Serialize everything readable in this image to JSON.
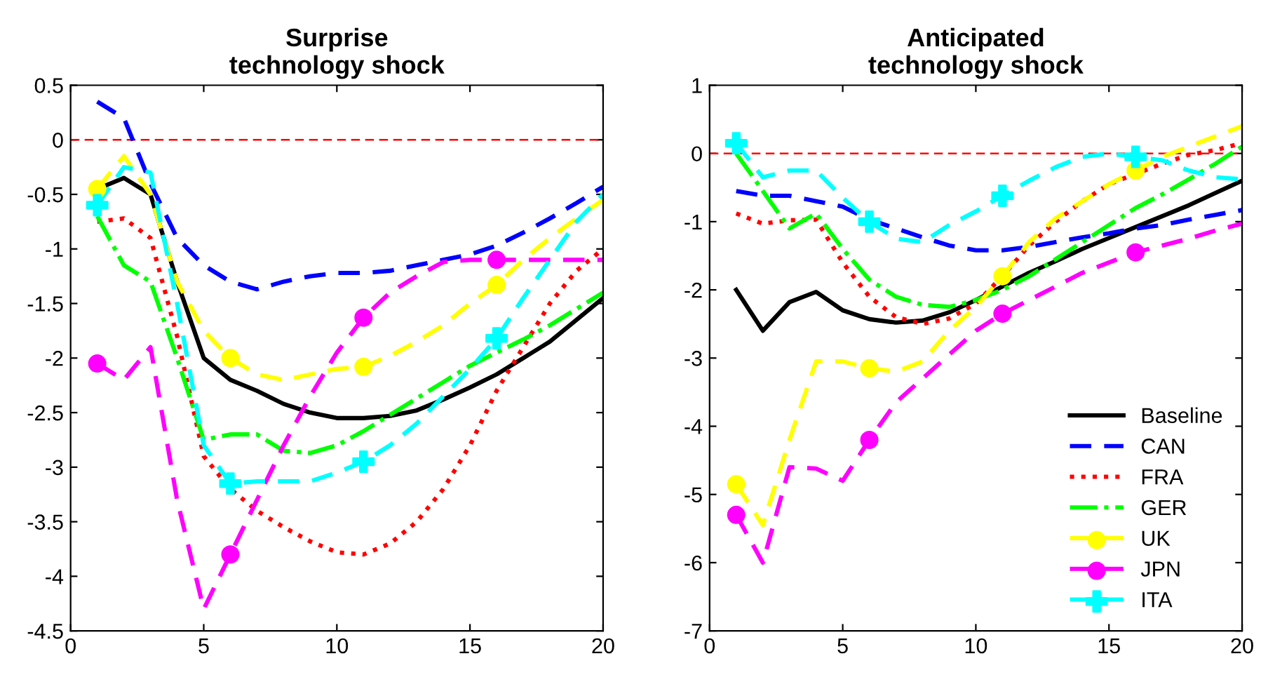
{
  "chart_data": [
    {
      "type": "line",
      "title": "Surprise\ntechnology shock",
      "x": [
        1,
        2,
        3,
        4,
        5,
        6,
        7,
        8,
        9,
        10,
        11,
        12,
        13,
        14,
        15,
        16,
        17,
        18,
        19,
        20
      ],
      "xlim": [
        0,
        20
      ],
      "xticks": [
        0,
        5,
        10,
        15,
        20
      ],
      "ylim": [
        -4.5,
        0.5
      ],
      "yticks": [
        -4.5,
        -4,
        -3.5,
        -3,
        -2.5,
        -2,
        -1.5,
        -1,
        -0.5,
        0,
        0.5
      ],
      "grid": false,
      "legend": false,
      "ref_lines": [
        {
          "axis": "y",
          "value": 0,
          "color": "#ff0000",
          "line_style": "dashed"
        }
      ],
      "series": [
        {
          "color": "#000000",
          "line_style": "solid",
          "marker": "none",
          "values": [
            -0.45,
            -0.35,
            -0.5,
            -1.3,
            -2.0,
            -2.2,
            -2.3,
            -2.42,
            -2.5,
            -2.55,
            -2.55,
            -2.53,
            -2.48,
            -2.38,
            -2.27,
            -2.15,
            -2.0,
            -1.85,
            -1.65,
            -1.45
          ]
        },
        {
          "color": "#0000ff",
          "line_style": "dashed",
          "marker": "none",
          "values": [
            0.35,
            0.2,
            -0.4,
            -0.9,
            -1.15,
            -1.3,
            -1.37,
            -1.3,
            -1.25,
            -1.22,
            -1.22,
            -1.2,
            -1.15,
            -1.1,
            -1.05,
            -0.97,
            -0.85,
            -0.72,
            -0.58,
            -0.43
          ]
        },
        {
          "color": "#ff0000",
          "line_style": "dotted",
          "marker": "none",
          "values": [
            -0.75,
            -0.72,
            -0.9,
            -1.8,
            -2.9,
            -3.2,
            -3.4,
            -3.55,
            -3.68,
            -3.78,
            -3.8,
            -3.7,
            -3.5,
            -3.2,
            -2.8,
            -2.3,
            -1.9,
            -1.5,
            -1.2,
            -1.0
          ]
        },
        {
          "color": "#00ff00",
          "line_style": "dashdot",
          "marker": "none",
          "values": [
            -0.7,
            -1.15,
            -1.3,
            -2.0,
            -2.75,
            -2.7,
            -2.7,
            -2.85,
            -2.87,
            -2.8,
            -2.67,
            -2.52,
            -2.37,
            -2.22,
            -2.07,
            -1.95,
            -1.83,
            -1.7,
            -1.55,
            -1.4
          ]
        },
        {
          "color": "#ffff00",
          "line_style": "dashed",
          "marker": "none",
          "values": [
            -0.45,
            -0.15,
            -0.5,
            -1.3,
            -1.75,
            -2.0,
            -2.15,
            -2.2,
            -2.15,
            -2.1,
            -2.08,
            -1.98,
            -1.85,
            -1.7,
            -1.5,
            -1.33,
            -1.1,
            -0.9,
            -0.72,
            -0.55
          ]
        },
        {
          "type": "scatter",
          "color": "#ffff00",
          "marker": "circle",
          "x": [
            1,
            6,
            11,
            16
          ],
          "values": [
            -0.45,
            -2.0,
            -2.08,
            -1.33
          ]
        },
        {
          "color": "#ff00ff",
          "line_style": "dashed",
          "marker": "none",
          "values": [
            -2.05,
            -2.2,
            -1.9,
            -3.3,
            -4.3,
            -3.8,
            -3.3,
            -2.8,
            -2.35,
            -1.95,
            -1.63,
            -1.4,
            -1.25,
            -1.12,
            -1.1,
            -1.1,
            -1.1,
            -1.1,
            -1.1,
            -1.1
          ]
        },
        {
          "type": "scatter",
          "color": "#ff00ff",
          "marker": "circle",
          "x": [
            1,
            6,
            11,
            16
          ],
          "values": [
            -2.05,
            -3.8,
            -1.63,
            -1.1
          ]
        },
        {
          "color": "#00ffff",
          "line_style": "dashed",
          "marker": "none",
          "values": [
            -0.6,
            -0.25,
            -0.3,
            -1.5,
            -2.8,
            -3.15,
            -3.13,
            -3.13,
            -3.13,
            -3.05,
            -2.95,
            -2.8,
            -2.6,
            -2.35,
            -2.1,
            -1.82,
            -1.45,
            -1.1,
            -0.75,
            -0.5
          ]
        },
        {
          "type": "scatter",
          "color": "#00ffff",
          "marker": "cross",
          "x": [
            1,
            6,
            11,
            16
          ],
          "values": [
            -0.6,
            -3.15,
            -2.95,
            -1.82
          ]
        }
      ]
    },
    {
      "type": "line",
      "title": "Anticipated\ntechnology shock",
      "x": [
        1,
        2,
        3,
        4,
        5,
        6,
        7,
        8,
        9,
        10,
        11,
        12,
        13,
        14,
        15,
        16,
        17,
        18,
        19,
        20
      ],
      "xlim": [
        0,
        20
      ],
      "xticks": [
        0,
        5,
        10,
        15,
        20
      ],
      "ylim": [
        -7,
        1
      ],
      "yticks": [
        -7,
        -6,
        -5,
        -4,
        -3,
        -2,
        -1,
        0,
        1
      ],
      "grid": false,
      "legend": "bottom right",
      "ref_lines": [
        {
          "axis": "y",
          "value": 0,
          "color": "#ff0000",
          "line_style": "dashed"
        }
      ],
      "series": [
        {
          "name": "Baseline",
          "color": "#000000",
          "line_style": "solid",
          "marker": "none",
          "values": [
            -2.0,
            -2.6,
            -2.18,
            -2.03,
            -2.3,
            -2.43,
            -2.48,
            -2.45,
            -2.33,
            -2.15,
            -1.95,
            -1.75,
            -1.58,
            -1.4,
            -1.24,
            -1.08,
            -0.92,
            -0.76,
            -0.58,
            -0.4
          ]
        },
        {
          "name": "CAN",
          "color": "#0000ff",
          "line_style": "dashed",
          "marker": "none",
          "values": [
            -0.55,
            -0.62,
            -0.62,
            -0.7,
            -0.78,
            -0.97,
            -1.1,
            -1.23,
            -1.35,
            -1.42,
            -1.42,
            -1.37,
            -1.3,
            -1.23,
            -1.17,
            -1.1,
            -1.05,
            -0.97,
            -0.9,
            -0.83
          ]
        },
        {
          "name": "FRA",
          "color": "#ff0000",
          "line_style": "dotted",
          "marker": "none",
          "values": [
            -0.88,
            -1.03,
            -0.98,
            -0.97,
            -1.6,
            -2.1,
            -2.4,
            -2.5,
            -2.42,
            -2.2,
            -1.8,
            -1.35,
            -1.0,
            -0.7,
            -0.45,
            -0.3,
            -0.15,
            -0.02,
            0.05,
            0.15
          ]
        },
        {
          "name": "GER",
          "color": "#00ff00",
          "line_style": "dashdot",
          "marker": "none",
          "values": [
            0.0,
            -0.55,
            -1.1,
            -0.88,
            -1.4,
            -1.85,
            -2.1,
            -2.22,
            -2.25,
            -2.15,
            -2.0,
            -1.8,
            -1.55,
            -1.3,
            -1.05,
            -0.8,
            -0.6,
            -0.38,
            -0.15,
            0.1
          ]
        },
        {
          "name": "UK",
          "color": "#ffff00",
          "line_style": "dashed",
          "marker": "none",
          "values": [
            -4.85,
            -5.45,
            -4.2,
            -3.05,
            -3.05,
            -3.15,
            -3.2,
            -3.05,
            -2.6,
            -2.25,
            -1.8,
            -1.3,
            -0.95,
            -0.7,
            -0.45,
            -0.25,
            -0.05,
            0.1,
            0.25,
            0.4
          ]
        },
        {
          "type": "scatter",
          "color": "#ffff00",
          "marker": "circle",
          "x": [
            1,
            6,
            11,
            16
          ],
          "values": [
            -4.85,
            -3.15,
            -1.8,
            -0.25
          ]
        },
        {
          "name": "JPN",
          "color": "#ff00ff",
          "line_style": "dashed",
          "marker": "none",
          "values": [
            -5.3,
            -6.0,
            -4.6,
            -4.62,
            -4.8,
            -4.2,
            -3.65,
            -3.3,
            -2.95,
            -2.6,
            -2.35,
            -2.15,
            -1.95,
            -1.75,
            -1.6,
            -1.45,
            -1.35,
            -1.25,
            -1.13,
            -1.03
          ]
        },
        {
          "type": "scatter",
          "color": "#ff00ff",
          "marker": "circle",
          "x": [
            1,
            6,
            11,
            16
          ],
          "values": [
            -5.3,
            -4.2,
            -2.35,
            -1.45
          ]
        },
        {
          "name": "ITA",
          "color": "#00ffff",
          "line_style": "dashed",
          "marker": "none",
          "values": [
            0.15,
            -0.35,
            -0.25,
            -0.25,
            -0.65,
            -1.0,
            -1.25,
            -1.3,
            -1.05,
            -0.85,
            -0.62,
            -0.4,
            -0.2,
            -0.05,
            0.0,
            -0.05,
            -0.1,
            -0.25,
            -0.35,
            -0.38
          ]
        },
        {
          "type": "scatter",
          "color": "#00ffff",
          "marker": "cross",
          "x": [
            1,
            6,
            11,
            16
          ],
          "values": [
            0.15,
            -1.0,
            -0.62,
            -0.05
          ]
        }
      ]
    }
  ]
}
